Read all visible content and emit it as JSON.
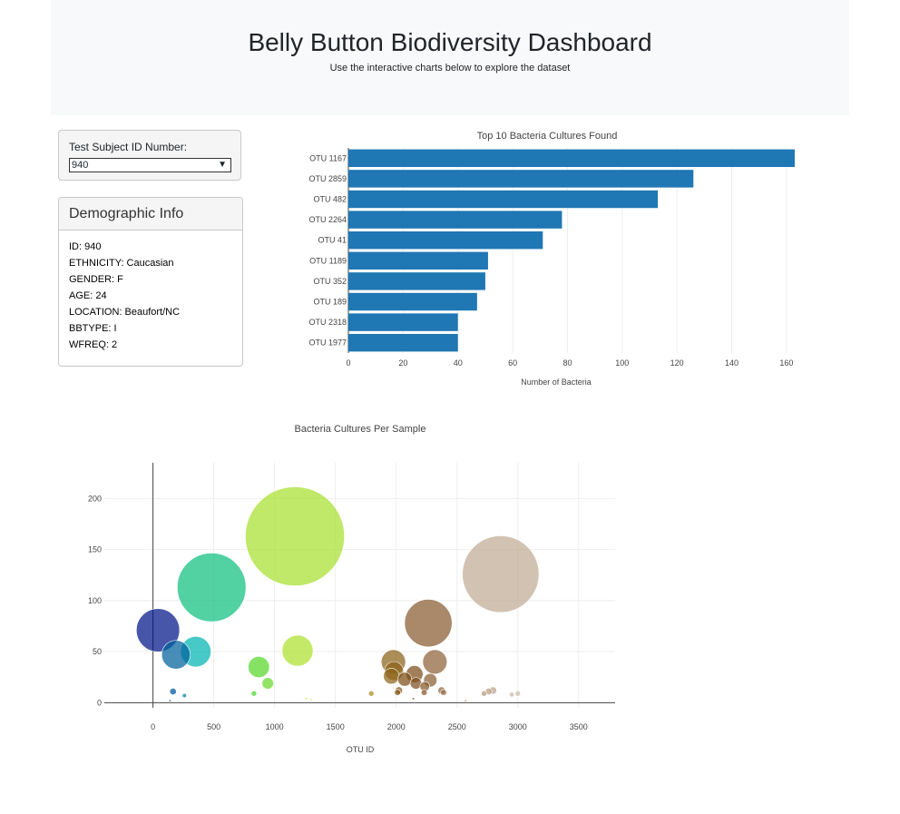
{
  "header": {
    "title": "Belly Button Biodiversity Dashboard",
    "subtitle": "Use the interactive charts below to explore the dataset"
  },
  "selector": {
    "label": "Test Subject ID Number:",
    "value": "940"
  },
  "demographics": {
    "title": "Demographic Info",
    "rows": [
      "ID: 940",
      "ETHNICITY: Caucasian",
      "GENDER: F",
      "AGE: 24",
      "LOCATION: Beaufort/NC",
      "BBTYPE: I",
      "WFREQ: 2"
    ]
  },
  "colors": {
    "bar": "#1f77b4",
    "panel_bg": "#f5f5f5",
    "jumbotron_bg": "#f8f9fa"
  },
  "chart_data": [
    {
      "type": "bar",
      "orientation": "horizontal",
      "title": "Top 10 Bacteria Cultures Found",
      "xlabel": "Number of Bacteria",
      "ylabel": "",
      "xlim": [
        0,
        165
      ],
      "xticks": [
        0,
        20,
        40,
        60,
        80,
        100,
        120,
        140,
        160
      ],
      "categories": [
        "OTU 1167",
        "OTU 2859",
        "OTU 482",
        "OTU 2264",
        "OTU 41",
        "OTU 1189",
        "OTU 352",
        "OTU 189",
        "OTU 2318",
        "OTU 1977"
      ],
      "values": [
        163,
        126,
        113,
        78,
        71,
        51,
        50,
        47,
        40,
        40
      ],
      "grid": true
    },
    {
      "type": "scatter",
      "subtype": "bubble",
      "title": "Bacteria Cultures Per Sample",
      "xlabel": "OTU ID",
      "ylabel": "",
      "xlim": [
        -400,
        3800
      ],
      "ylim": [
        -5,
        235
      ],
      "xticks": [
        0,
        500,
        1000,
        1500,
        2000,
        2500,
        3000,
        3500
      ],
      "yticks": [
        0,
        50,
        100,
        150,
        200
      ],
      "colorscale": "Earth",
      "grid": true,
      "points": [
        {
          "x": 41,
          "y": 71
        },
        {
          "x": 165,
          "y": 11
        },
        {
          "x": 189,
          "y": 47
        },
        {
          "x": 259,
          "y": 7
        },
        {
          "x": 352,
          "y": 50
        },
        {
          "x": 482,
          "y": 113
        },
        {
          "x": 830,
          "y": 9
        },
        {
          "x": 870,
          "y": 35
        },
        {
          "x": 944,
          "y": 19
        },
        {
          "x": 1167,
          "y": 163
        },
        {
          "x": 1189,
          "y": 51
        },
        {
          "x": 1795,
          "y": 9
        },
        {
          "x": 1977,
          "y": 40
        },
        {
          "x": 1982,
          "y": 31
        },
        {
          "x": 1960,
          "y": 26
        },
        {
          "x": 2011,
          "y": 10
        },
        {
          "x": 2022,
          "y": 12
        },
        {
          "x": 2070,
          "y": 23
        },
        {
          "x": 2150,
          "y": 28
        },
        {
          "x": 2162,
          "y": 19
        },
        {
          "x": 2264,
          "y": 78
        },
        {
          "x": 2235,
          "y": 16
        },
        {
          "x": 2230,
          "y": 10
        },
        {
          "x": 2280,
          "y": 22
        },
        {
          "x": 2318,
          "y": 40
        },
        {
          "x": 2373,
          "y": 12
        },
        {
          "x": 2390,
          "y": 10
        },
        {
          "x": 2722,
          "y": 9
        },
        {
          "x": 2760,
          "y": 11
        },
        {
          "x": 2796,
          "y": 12
        },
        {
          "x": 2859,
          "y": 126
        },
        {
          "x": 2950,
          "y": 8
        },
        {
          "x": 3000,
          "y": 9
        },
        {
          "x": 1260,
          "y": 4
        },
        {
          "x": 1300,
          "y": 3
        },
        {
          "x": 140,
          "y": 2
        },
        {
          "x": 2140,
          "y": 4
        },
        {
          "x": 2570,
          "y": 2
        }
      ]
    }
  ]
}
